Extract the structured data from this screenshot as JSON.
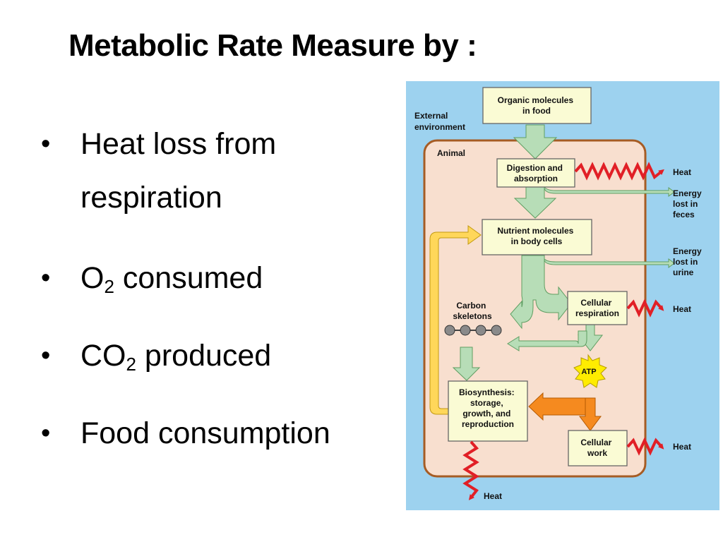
{
  "slide": {
    "title": "Metabolic Rate Measure by :",
    "bullets": [
      {
        "marker": "•",
        "line1": "Heat loss from",
        "line2": "respiration"
      },
      {
        "marker": "•",
        "pre": "O",
        "sub": "2",
        "post": " consumed"
      },
      {
        "marker": "•",
        "pre": "CO",
        "sub": "2",
        "post": " produced"
      },
      {
        "marker": "•",
        "text": "Food consumption"
      }
    ]
  },
  "diagram": {
    "external_environment": [
      "External",
      "environment"
    ],
    "animal": "Animal",
    "organic_molecules": [
      "Organic molecules",
      "in food"
    ],
    "digestion": [
      "Digestion and",
      "absorption"
    ],
    "nutrient_molecules": [
      "Nutrient molecules",
      "in body cells"
    ],
    "carbon_skeletons": [
      "Carbon",
      "skeletons"
    ],
    "cellular_respiration": [
      "Cellular",
      "respiration"
    ],
    "atp": "ATP",
    "biosynthesis": [
      "Biosynthesis:",
      "storage,",
      "growth, and",
      "reproduction"
    ],
    "cellular_work": [
      "Cellular",
      "work"
    ],
    "heat": "Heat",
    "energy_feces": [
      "Energy",
      "lost in",
      "feces"
    ],
    "energy_urine": [
      "Energy",
      "lost in",
      "urine"
    ]
  },
  "colors": {
    "outside": "#9dd2ef",
    "animal_fill": "#f8dfcf",
    "animal_border": "#a65c24",
    "box_fill": "#fafbd4",
    "green_arrow": "#b7ddb7",
    "heat_zigzag": "#e11f26",
    "yellow_arrow": "#ffd75a",
    "orange_arrow": "#f58a1f",
    "atp_star": "#ffec00"
  }
}
